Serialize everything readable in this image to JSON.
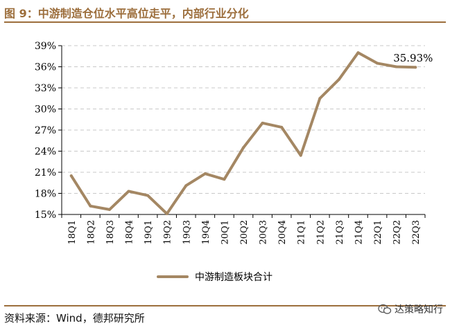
{
  "figure": {
    "title": "图 9：中游制造仓位水平高位走平，内部行业分化",
    "source": "资料来源：Wind，德邦研究所",
    "watermark": "达策略知行",
    "watermark_icon": "wechat-icon",
    "line_color": "#a48763",
    "accent_color": "#9c6e3c"
  },
  "chart_data": {
    "type": "line",
    "categories": [
      "18Q1",
      "18Q2",
      "18Q3",
      "18Q4",
      "19Q1",
      "19Q2",
      "19Q3",
      "19Q4",
      "20Q1",
      "20Q2",
      "20Q3",
      "20Q4",
      "21Q1",
      "21Q2",
      "21Q3",
      "21Q4",
      "22Q1",
      "22Q2",
      "22Q3"
    ],
    "series": [
      {
        "name": "中游制造板块合计",
        "values": [
          20.5,
          16.2,
          15.7,
          18.3,
          17.7,
          15.1,
          19.1,
          20.8,
          20.0,
          24.5,
          28.0,
          27.4,
          23.4,
          31.5,
          34.2,
          38.0,
          36.5,
          36.0,
          35.93
        ]
      }
    ],
    "yticks": [
      "15%",
      "18%",
      "21%",
      "24%",
      "27%",
      "30%",
      "33%",
      "36%",
      "39%"
    ],
    "ylim": [
      15,
      39
    ],
    "grid": true,
    "annotation": {
      "label": "35.93%",
      "category": "22Q3",
      "value": 35.93
    },
    "legend_position": "bottom"
  }
}
